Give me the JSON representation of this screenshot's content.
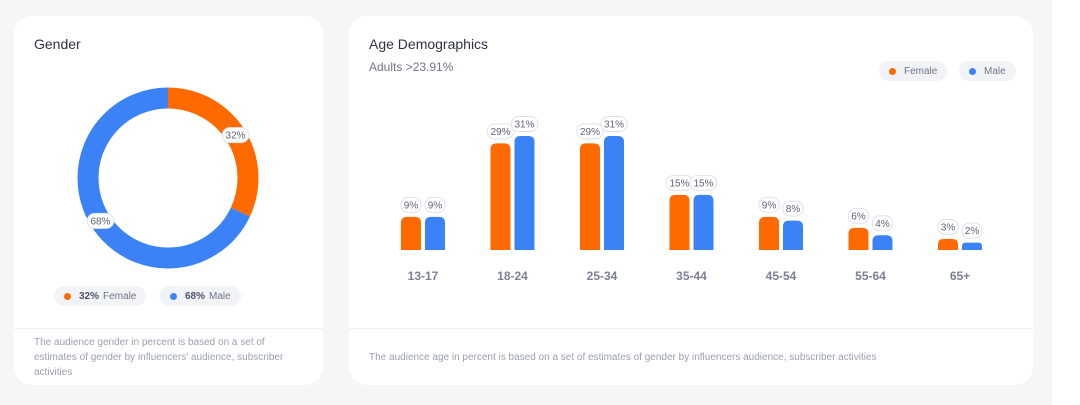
{
  "colors": {
    "female": "#ff6a00",
    "male": "#3b82f6"
  },
  "gender": {
    "title": "Gender",
    "footnote": "The audience gender in percent is based on a set of estimates of gender by influencers' audience, subscriber activities",
    "legend": [
      {
        "pct": "32%",
        "label": "Female"
      },
      {
        "pct": "68%",
        "label": "Male"
      }
    ]
  },
  "age": {
    "title": "Age Demographics",
    "subtitle": "Adults >23.91%",
    "footnote": "The audience age in percent is based on a set of estimates of gender by influencers audience, subscriber activities",
    "legend": [
      {
        "label": "Female"
      },
      {
        "label": "Male"
      }
    ]
  },
  "chart_data": [
    {
      "type": "pie",
      "donut": true,
      "title": "Gender",
      "labels": [
        "Female",
        "Male"
      ],
      "values": [
        32,
        68
      ],
      "slice_labels": [
        "32%",
        "68%"
      ]
    },
    {
      "type": "bar",
      "title": "Age Demographics",
      "categories": [
        "13-17",
        "18-24",
        "25-34",
        "35-44",
        "45-54",
        "55-64",
        "65+"
      ],
      "series": [
        {
          "name": "Female",
          "values": [
            9,
            29,
            29,
            15,
            9,
            6,
            3
          ],
          "labels": [
            "9%",
            "29%",
            "29%",
            "15%",
            "9%",
            "6%",
            "3%"
          ]
        },
        {
          "name": "Male",
          "values": [
            9,
            31,
            31,
            15,
            8,
            4,
            2
          ],
          "labels": [
            "9%",
            "31%",
            "31%",
            "15%",
            "8%",
            "4%",
            "2%"
          ]
        }
      ],
      "ylim": [
        0,
        31
      ],
      "legend": "top-right",
      "grid": false
    }
  ]
}
